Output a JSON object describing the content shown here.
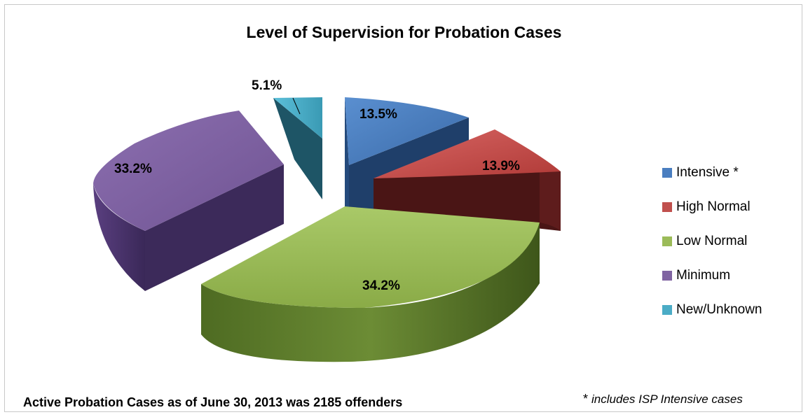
{
  "chart_data": {
    "type": "pie",
    "title": "Level of Supervision for Probation Cases",
    "slices": [
      {
        "label": "Intensive *",
        "value": 13.5,
        "value_label": "13.5%",
        "color": "#4a7ec0"
      },
      {
        "label": "High Normal",
        "value": 13.9,
        "value_label": "13.9%",
        "color": "#c0504d"
      },
      {
        "label": "Low Normal",
        "value": 34.2,
        "value_label": "34.2%",
        "color": "#9bbb59"
      },
      {
        "label": "Minimum",
        "value": 33.2,
        "value_label": "33.2%",
        "color": "#8064a2"
      },
      {
        "label": "New/Unknown",
        "value": 5.1,
        "value_label": "5.1%",
        "color": "#4bacc6"
      }
    ],
    "style": "3d-exploded",
    "legend_position": "right"
  },
  "footer": {
    "summary": "Active Probation Cases as of June 30, 2013 was 2185 offenders",
    "footnote_marker": "*",
    "footnote_text": "includes ISP Intensive cases"
  }
}
